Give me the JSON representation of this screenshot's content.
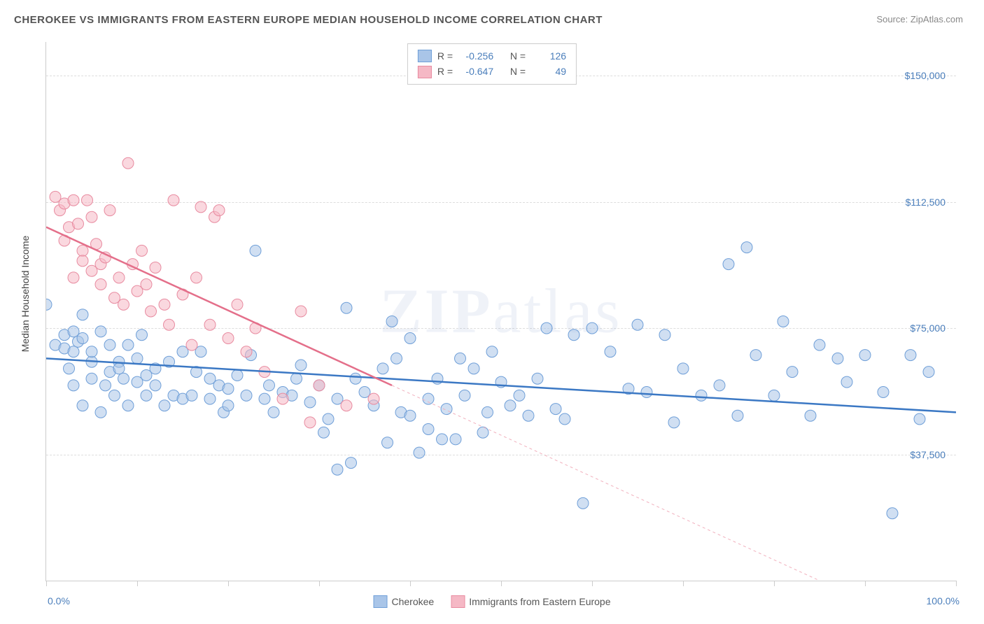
{
  "title": "CHEROKEE VS IMMIGRANTS FROM EASTERN EUROPE MEDIAN HOUSEHOLD INCOME CORRELATION CHART",
  "source_label": "Source: ",
  "source_name": "ZipAtlas.com",
  "watermark": "ZIPatlas",
  "y_axis_label": "Median Household Income",
  "chart": {
    "type": "scatter",
    "xlim": [
      0,
      100
    ],
    "ylim": [
      0,
      160000
    ],
    "x_min_label": "0.0%",
    "x_max_label": "100.0%",
    "y_ticks": [
      37500,
      75000,
      112500,
      150000
    ],
    "y_tick_labels": [
      "$37,500",
      "$75,000",
      "$112,500",
      "$150,000"
    ],
    "x_ticks": [
      0,
      10,
      20,
      30,
      40,
      50,
      60,
      70,
      80,
      90,
      100
    ],
    "grid_color": "#dddddd",
    "background_color": "#ffffff",
    "axis_color": "#cccccc",
    "label_fontsize": 14,
    "title_fontsize": 15,
    "tick_color": "#4a7ebb",
    "series": [
      {
        "name": "Cherokee",
        "fill_color": "#a9c5e8",
        "stroke_color": "#6f9fd8",
        "fill_opacity": 0.55,
        "marker_radius": 8,
        "trend_line": {
          "x1": 0,
          "y1": 66000,
          "x2": 100,
          "y2": 50000,
          "width": 2.5,
          "color": "#3b78c4",
          "dash": "none"
        },
        "R": "-0.256",
        "N": "126",
        "points": [
          [
            0,
            82000
          ],
          [
            1,
            70000
          ],
          [
            2,
            73000
          ],
          [
            2,
            69000
          ],
          [
            2.5,
            63000
          ],
          [
            3,
            68000
          ],
          [
            3,
            74000
          ],
          [
            3,
            58000
          ],
          [
            3.5,
            71000
          ],
          [
            4,
            72000
          ],
          [
            4,
            79000
          ],
          [
            4,
            52000
          ],
          [
            5,
            60000
          ],
          [
            5,
            65000
          ],
          [
            5,
            68000
          ],
          [
            6,
            74000
          ],
          [
            6,
            50000
          ],
          [
            6.5,
            58000
          ],
          [
            7,
            62000
          ],
          [
            7,
            70000
          ],
          [
            7.5,
            55000
          ],
          [
            8,
            65000
          ],
          [
            8,
            63000
          ],
          [
            8.5,
            60000
          ],
          [
            9,
            52000
          ],
          [
            9,
            70000
          ],
          [
            10,
            66000
          ],
          [
            10,
            59000
          ],
          [
            10.5,
            73000
          ],
          [
            11,
            55000
          ],
          [
            11,
            61000
          ],
          [
            12,
            58000
          ],
          [
            12,
            63000
          ],
          [
            13,
            52000
          ],
          [
            13.5,
            65000
          ],
          [
            14,
            55000
          ],
          [
            15,
            68000
          ],
          [
            15,
            54000
          ],
          [
            16,
            55000
          ],
          [
            16.5,
            62000
          ],
          [
            17,
            68000
          ],
          [
            18,
            54000
          ],
          [
            18,
            60000
          ],
          [
            19,
            58000
          ],
          [
            19.5,
            50000
          ],
          [
            20,
            52000
          ],
          [
            20,
            57000
          ],
          [
            21,
            61000
          ],
          [
            22,
            55000
          ],
          [
            22.5,
            67000
          ],
          [
            23,
            98000
          ],
          [
            24,
            54000
          ],
          [
            24.5,
            58000
          ],
          [
            25,
            50000
          ],
          [
            26,
            56000
          ],
          [
            27,
            55000
          ],
          [
            27.5,
            60000
          ],
          [
            28,
            64000
          ],
          [
            29,
            53000
          ],
          [
            30,
            58000
          ],
          [
            30.5,
            44000
          ],
          [
            31,
            48000
          ],
          [
            32,
            54000
          ],
          [
            32,
            33000
          ],
          [
            33,
            81000
          ],
          [
            33.5,
            35000
          ],
          [
            34,
            60000
          ],
          [
            35,
            56000
          ],
          [
            36,
            52000
          ],
          [
            37,
            63000
          ],
          [
            37.5,
            41000
          ],
          [
            38,
            77000
          ],
          [
            38.5,
            66000
          ],
          [
            39,
            50000
          ],
          [
            40,
            49000
          ],
          [
            40,
            72000
          ],
          [
            41,
            38000
          ],
          [
            42,
            54000
          ],
          [
            42,
            45000
          ],
          [
            43,
            60000
          ],
          [
            43.5,
            42000
          ],
          [
            44,
            51000
          ],
          [
            45,
            42000
          ],
          [
            45.5,
            66000
          ],
          [
            46,
            55000
          ],
          [
            47,
            63000
          ],
          [
            48,
            44000
          ],
          [
            48.5,
            50000
          ],
          [
            49,
            68000
          ],
          [
            50,
            59000
          ],
          [
            51,
            52000
          ],
          [
            52,
            55000
          ],
          [
            53,
            49000
          ],
          [
            54,
            60000
          ],
          [
            55,
            75000
          ],
          [
            56,
            51000
          ],
          [
            57,
            48000
          ],
          [
            58,
            73000
          ],
          [
            59,
            23000
          ],
          [
            60,
            75000
          ],
          [
            62,
            68000
          ],
          [
            64,
            57000
          ],
          [
            65,
            76000
          ],
          [
            66,
            56000
          ],
          [
            68,
            73000
          ],
          [
            69,
            47000
          ],
          [
            70,
            63000
          ],
          [
            72,
            55000
          ],
          [
            74,
            58000
          ],
          [
            75,
            94000
          ],
          [
            76,
            49000
          ],
          [
            77,
            99000
          ],
          [
            78,
            67000
          ],
          [
            80,
            55000
          ],
          [
            81,
            77000
          ],
          [
            82,
            62000
          ],
          [
            84,
            49000
          ],
          [
            85,
            70000
          ],
          [
            87,
            66000
          ],
          [
            88,
            59000
          ],
          [
            90,
            67000
          ],
          [
            92,
            56000
          ],
          [
            93,
            20000
          ],
          [
            95,
            67000
          ],
          [
            96,
            48000
          ],
          [
            97,
            62000
          ]
        ]
      },
      {
        "name": "Immigrants from Eastern Europe",
        "fill_color": "#f5b8c5",
        "stroke_color": "#e88ba0",
        "fill_opacity": 0.55,
        "marker_radius": 8,
        "trend_line": {
          "x1": 0,
          "y1": 105000,
          "x2": 38,
          "y2": 58000,
          "width": 2.5,
          "color": "#e46f8a",
          "dash": "none"
        },
        "trend_line_ext": {
          "x1": 38,
          "y1": 58000,
          "x2": 85,
          "y2": 0,
          "width": 1,
          "color": "#f1b0bd",
          "dash": "4,4"
        },
        "R": "-0.647",
        "N": "49",
        "points": [
          [
            1,
            114000
          ],
          [
            1.5,
            110000
          ],
          [
            2,
            112000
          ],
          [
            2,
            101000
          ],
          [
            2.5,
            105000
          ],
          [
            3,
            113000
          ],
          [
            3,
            90000
          ],
          [
            3.5,
            106000
          ],
          [
            4,
            98000
          ],
          [
            4,
            95000
          ],
          [
            4.5,
            113000
          ],
          [
            5,
            108000
          ],
          [
            5,
            92000
          ],
          [
            5.5,
            100000
          ],
          [
            6,
            88000
          ],
          [
            6,
            94000
          ],
          [
            6.5,
            96000
          ],
          [
            7,
            110000
          ],
          [
            7.5,
            84000
          ],
          [
            8,
            90000
          ],
          [
            8.5,
            82000
          ],
          [
            9,
            124000
          ],
          [
            9.5,
            94000
          ],
          [
            10,
            86000
          ],
          [
            10.5,
            98000
          ],
          [
            11,
            88000
          ],
          [
            11.5,
            80000
          ],
          [
            12,
            93000
          ],
          [
            13,
            82000
          ],
          [
            13.5,
            76000
          ],
          [
            14,
            113000
          ],
          [
            15,
            85000
          ],
          [
            16,
            70000
          ],
          [
            16.5,
            90000
          ],
          [
            17,
            111000
          ],
          [
            18,
            76000
          ],
          [
            18.5,
            108000
          ],
          [
            19,
            110000
          ],
          [
            20,
            72000
          ],
          [
            21,
            82000
          ],
          [
            22,
            68000
          ],
          [
            23,
            75000
          ],
          [
            24,
            62000
          ],
          [
            26,
            54000
          ],
          [
            28,
            80000
          ],
          [
            29,
            47000
          ],
          [
            30,
            58000
          ],
          [
            33,
            52000
          ],
          [
            36,
            54000
          ]
        ]
      }
    ]
  },
  "legend_top": {
    "R_label": "R =",
    "N_label": "N ="
  },
  "bottom_legend": [
    {
      "swatch_fill": "#a9c5e8",
      "swatch_stroke": "#6f9fd8",
      "label": "Cherokee"
    },
    {
      "swatch_fill": "#f5b8c5",
      "swatch_stroke": "#e88ba0",
      "label": "Immigrants from Eastern Europe"
    }
  ]
}
